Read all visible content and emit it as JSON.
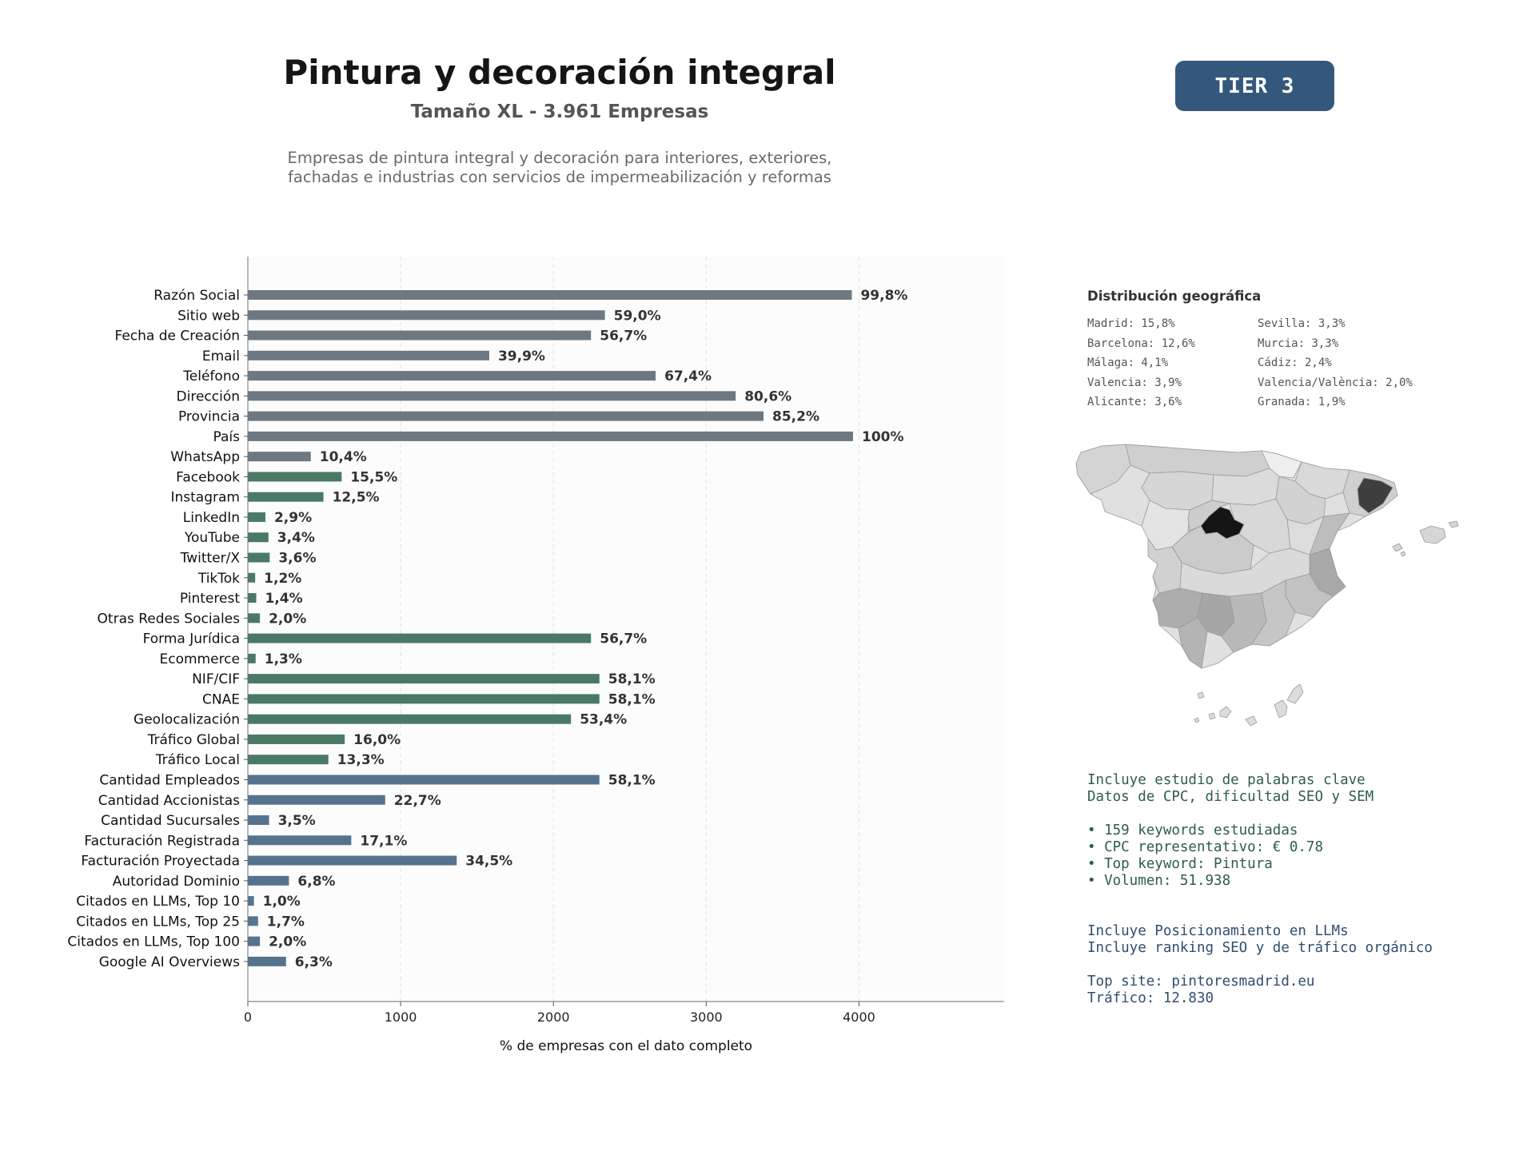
{
  "header": {
    "title": "Pintura y decoración integral",
    "subtitle": "Tamaño XL - 3.961 Empresas",
    "description_line1": "Empresas de pintura integral y decoración para interiores, exteriores,",
    "description_line2": "fachadas e industrias con servicios de impermeabilización y reformas",
    "tier": "TIER 3"
  },
  "colors": {
    "basic": "#6e7880",
    "social": "#4a7a66",
    "business": "#56738e",
    "tier_badge": "#34587c"
  },
  "chart_data": {
    "type": "bar",
    "orientation": "horizontal",
    "title": "Pintura y decoración integral",
    "xlabel": "% de empresas con el dato completo",
    "ylabel": "",
    "xlim": [
      0,
      4950
    ],
    "xticks": [
      0,
      1000,
      2000,
      3000,
      4000
    ],
    "grid": "vertical dashed",
    "categories": [
      "Razón Social",
      "Sitio web",
      "Fecha de Creación",
      "Email",
      "Teléfono",
      "Dirección",
      "Provincia",
      "País",
      "WhatsApp",
      "Facebook",
      "Instagram",
      "LinkedIn",
      "YouTube",
      "Twitter/X",
      "TikTok",
      "Pinterest",
      "Otras Redes Sociales",
      "Forma Jurídica",
      "Ecommerce",
      "NIF/CIF",
      "CNAE",
      "Geolocalización",
      "Tráfico Global",
      "Tráfico Local",
      "Cantidad Empleados",
      "Cantidad Accionistas",
      "Cantidad Sucursales",
      "Facturación Registrada",
      "Facturación Proyectada",
      "Autoridad Dominio",
      "Citados en LLMs, Top 10",
      "Citados en LLMs, Top 25",
      "Citados en LLMs, Top 100",
      "Google AI Overviews"
    ],
    "values": [
      3953,
      2337,
      2246,
      1580,
      2669,
      3193,
      3375,
      3961,
      412,
      614,
      495,
      115,
      135,
      143,
      48,
      55,
      79,
      2246,
      51,
      2301,
      2301,
      2115,
      634,
      527,
      2301,
      899,
      139,
      677,
      1367,
      269,
      40,
      67,
      79,
      250
    ],
    "labels": [
      "99,8%",
      "59,0%",
      "56,7%",
      "39,9%",
      "67,4%",
      "80,6%",
      "85,2%",
      "100%",
      "10,4%",
      "15,5%",
      "12,5%",
      "2,9%",
      "3,4%",
      "3,6%",
      "1,2%",
      "1,4%",
      "2,0%",
      "56,7%",
      "1,3%",
      "58,1%",
      "58,1%",
      "53,4%",
      "16,0%",
      "13,3%",
      "58,1%",
      "22,7%",
      "3,5%",
      "17,1%",
      "34,5%",
      "6,8%",
      "1,0%",
      "1,7%",
      "2,0%",
      "6,3%"
    ],
    "groups": [
      "basic",
      "basic",
      "basic",
      "basic",
      "basic",
      "basic",
      "basic",
      "basic",
      "basic",
      "social",
      "social",
      "social",
      "social",
      "social",
      "social",
      "social",
      "social",
      "social",
      "social",
      "social",
      "social",
      "social",
      "social",
      "social",
      "business",
      "business",
      "business",
      "business",
      "business",
      "business",
      "business",
      "business",
      "business",
      "business"
    ]
  },
  "geo": {
    "title": "Distribución geográfica",
    "items": [
      "Madrid: 15,8%",
      "Sevilla: 3,3%",
      "Barcelona: 12,6%",
      "Murcia: 3,3%",
      "Málaga: 4,1%",
      "Cádiz: 2,4%",
      "Valencia: 3,9%",
      "Valencia/València: 2,0%",
      "Alicante: 3,6%",
      "Granada: 1,9%"
    ]
  },
  "seo": {
    "line1": "Incluye estudio de palabras clave",
    "line2": "Datos de CPC, dificultad SEO y SEM",
    "bullets": [
      "• 159 keywords estudiadas",
      "• CPC representativo: € 0.78",
      "• Top keyword: Pintura",
      "• Volumen: 51.938"
    ]
  },
  "llm": {
    "line1": "Incluye Posicionamiento en LLMs",
    "line2": "Incluye ranking SEO y de tráfico orgánico",
    "top_site": "Top site: pintoresmadrid.eu",
    "traffic": "Tráfico: 12.830"
  }
}
